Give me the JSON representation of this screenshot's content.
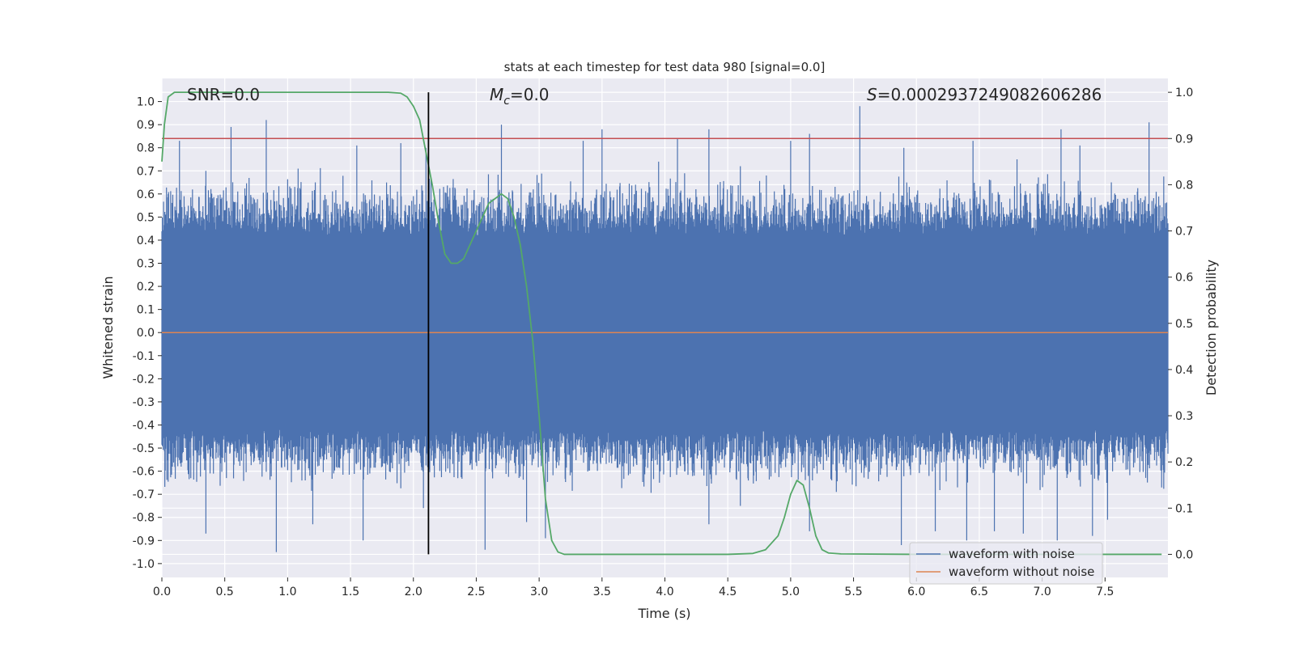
{
  "chart_data": {
    "type": "line",
    "title": "stats at each timestep for test data 980 [signal=0.0]",
    "xlabel": "Time (s)",
    "ylabel_left": "Whitened strain",
    "ylabel_right": "Detection probability",
    "xlim": [
      0.0,
      8.0
    ],
    "ylim_left": [
      -1.06,
      1.1
    ],
    "ylim_right": [
      -0.05,
      1.03
    ],
    "x_ticks": [
      "0.0",
      "0.5",
      "1.0",
      "1.5",
      "2.0",
      "2.5",
      "3.0",
      "3.5",
      "4.0",
      "4.5",
      "5.0",
      "5.5",
      "6.0",
      "6.5",
      "7.0",
      "7.5"
    ],
    "y_ticks_left": [
      "1.0",
      "0.9",
      "0.8",
      "0.7",
      "0.6",
      "0.5",
      "0.4",
      "0.3",
      "0.2",
      "0.1",
      "0.0",
      "-0.1",
      "-0.2",
      "-0.3",
      "-0.4",
      "-0.5",
      "-0.6",
      "-0.7",
      "-0.8",
      "-0.9",
      "-1.0"
    ],
    "y_ticks_right": [
      "1.0",
      "0.9",
      "0.8",
      "0.7",
      "0.6",
      "0.5",
      "0.4",
      "0.3",
      "0.2",
      "0.1",
      "0.0"
    ],
    "annotations": {
      "snr": "SNR=0.0",
      "mc_symbol": "M",
      "mc_sub": "c",
      "mc_value": "=0.0",
      "s_symbol": "S",
      "s_value": "=0.0002937249082606286"
    },
    "threshold": 0.9,
    "marker_time": 2.12,
    "grid": true,
    "legend_position": "lower right",
    "series": [
      {
        "name": "waveform with noise",
        "color": "#4c72b0",
        "axis": "left",
        "peaks": [
          [
            0.05,
            0.6
          ],
          [
            0.14,
            0.83
          ],
          [
            0.35,
            0.7
          ],
          [
            0.55,
            0.89
          ],
          [
            0.83,
            0.92
          ],
          [
            1.22,
            0.65
          ],
          [
            1.55,
            0.81
          ],
          [
            1.9,
            0.82
          ],
          [
            2.1,
            0.8
          ],
          [
            2.7,
            0.9
          ],
          [
            3.35,
            0.83
          ],
          [
            3.5,
            0.88
          ],
          [
            3.95,
            0.74
          ],
          [
            4.1,
            0.84
          ],
          [
            4.35,
            0.88
          ],
          [
            4.6,
            0.72
          ],
          [
            5.0,
            0.83
          ],
          [
            5.15,
            0.86
          ],
          [
            5.55,
            0.98
          ],
          [
            5.9,
            0.8
          ],
          [
            6.45,
            0.83
          ],
          [
            6.8,
            0.75
          ],
          [
            7.15,
            0.88
          ],
          [
            7.3,
            0.81
          ],
          [
            7.55,
            0.65
          ],
          [
            7.85,
            0.91
          ]
        ],
        "troughs": [
          [
            0.35,
            -0.87
          ],
          [
            0.91,
            -0.95
          ],
          [
            1.2,
            -0.83
          ],
          [
            1.6,
            -0.9
          ],
          [
            2.08,
            -0.76
          ],
          [
            2.57,
            -0.94
          ],
          [
            2.9,
            -0.82
          ],
          [
            3.05,
            -0.89
          ],
          [
            4.35,
            -0.83
          ],
          [
            4.6,
            -0.75
          ],
          [
            5.15,
            -0.86
          ],
          [
            5.88,
            -0.92
          ],
          [
            6.15,
            -0.86
          ],
          [
            6.4,
            -0.9
          ],
          [
            6.62,
            -0.86
          ],
          [
            6.85,
            -0.87
          ],
          [
            7.12,
            -0.9
          ],
          [
            7.4,
            -0.88
          ],
          [
            7.52,
            -0.81
          ]
        ]
      },
      {
        "name": "waveform without noise",
        "color": "#dd8452",
        "axis": "left",
        "x": [
          0.0,
          8.0
        ],
        "values": [
          0.0,
          0.0
        ]
      },
      {
        "name": "",
        "color": "#55a868",
        "axis": "right",
        "x": [
          0.0,
          0.02,
          0.05,
          0.1,
          0.2,
          0.5,
          1.0,
          1.5,
          1.8,
          1.9,
          1.95,
          2.0,
          2.05,
          2.1,
          2.15,
          2.2,
          2.25,
          2.3,
          2.35,
          2.4,
          2.5,
          2.6,
          2.7,
          2.75,
          2.8,
          2.85,
          2.9,
          2.95,
          3.0,
          3.05,
          3.1,
          3.15,
          3.2,
          3.5,
          4.0,
          4.5,
          4.7,
          4.8,
          4.9,
          4.95,
          5.0,
          5.05,
          5.1,
          5.15,
          5.2,
          5.25,
          5.3,
          5.4,
          6.0,
          7.0,
          7.95
        ],
        "values": [
          0.85,
          0.93,
          0.99,
          1.0,
          1.0,
          1.0,
          1.0,
          1.0,
          1.0,
          0.998,
          0.99,
          0.97,
          0.94,
          0.87,
          0.8,
          0.72,
          0.65,
          0.63,
          0.63,
          0.64,
          0.7,
          0.76,
          0.78,
          0.77,
          0.73,
          0.67,
          0.58,
          0.46,
          0.3,
          0.12,
          0.03,
          0.005,
          0.0,
          0.0,
          0.0,
          0.0,
          0.002,
          0.01,
          0.04,
          0.08,
          0.13,
          0.16,
          0.15,
          0.1,
          0.04,
          0.01,
          0.003,
          0.001,
          0.0,
          0.0,
          0.0
        ]
      }
    ]
  }
}
